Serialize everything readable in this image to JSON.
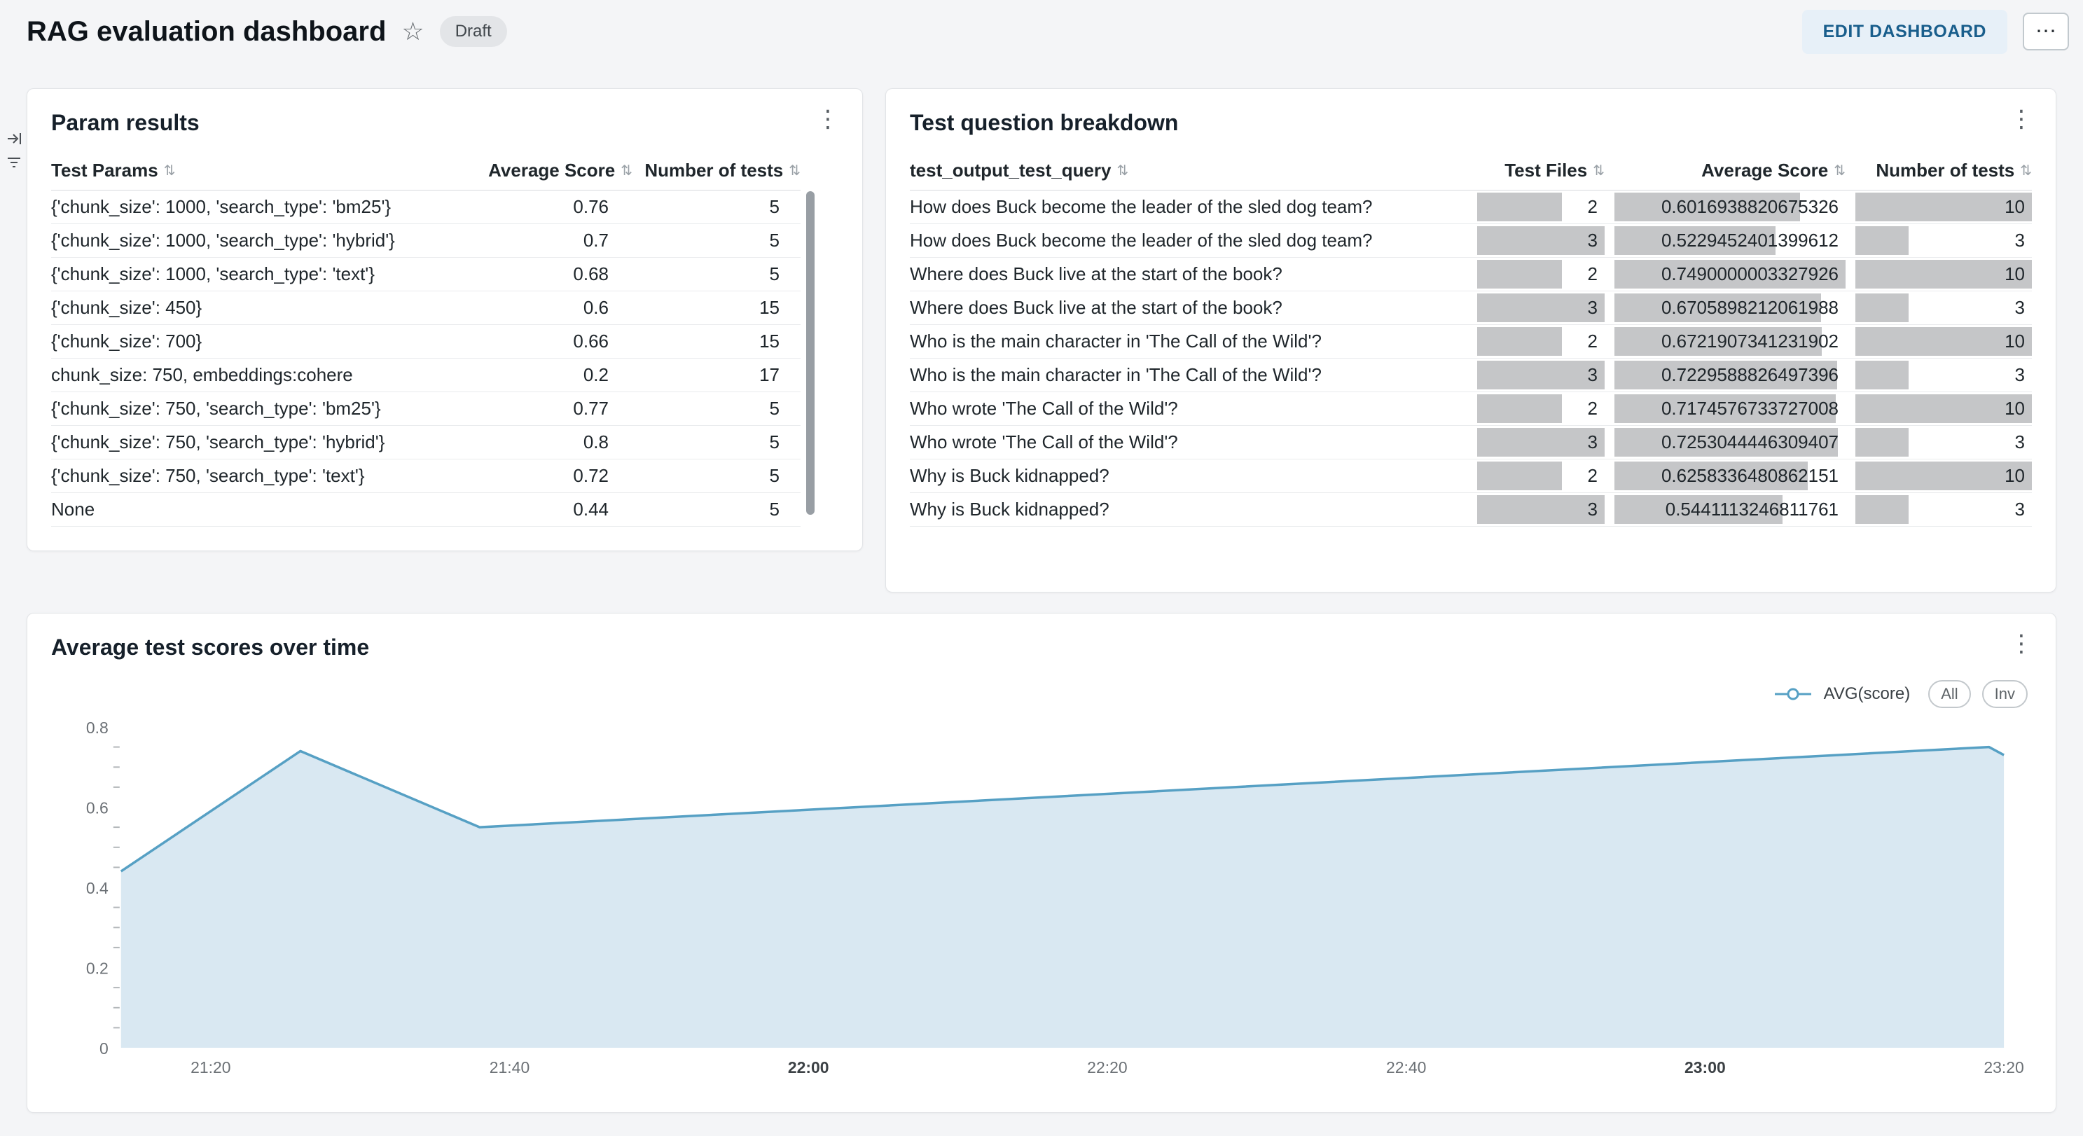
{
  "header": {
    "title": "RAG evaluation dashboard",
    "status_badge": "Draft",
    "edit_button": "EDIT DASHBOARD"
  },
  "icons": {
    "star": "☆",
    "kebab": "⋮",
    "ellipsis": "⋯",
    "sort": "⇅",
    "left_rail": [
      "collapse-panel-icon",
      "filter-icon"
    ]
  },
  "colors": {
    "edit_button_bg": "#e7f0f8",
    "edit_button_text": "#195e8c",
    "cell_bar_fill": "#c5c6c8",
    "chart_line": "#56a0c4",
    "chart_fill": "#d9e8f2",
    "scrollbar": "#989ea4"
  },
  "panels": {
    "param_results": {
      "title": "Param results",
      "columns": [
        "Test Params",
        "Average Score",
        "Number of tests"
      ],
      "rows": [
        {
          "params": "{'chunk_size': 1000, 'search_type': 'bm25'}",
          "avg_score": "0.76",
          "num_tests": "5"
        },
        {
          "params": "{'chunk_size': 1000, 'search_type': 'hybrid'}",
          "avg_score": "0.7",
          "num_tests": "5"
        },
        {
          "params": "{'chunk_size': 1000, 'search_type': 'text'}",
          "avg_score": "0.68",
          "num_tests": "5"
        },
        {
          "params": "{'chunk_size': 450}",
          "avg_score": "0.6",
          "num_tests": "15"
        },
        {
          "params": "{'chunk_size': 700}",
          "avg_score": "0.66",
          "num_tests": "15"
        },
        {
          "params": "chunk_size: 750, embeddings:cohere",
          "avg_score": "0.2",
          "num_tests": "17"
        },
        {
          "params": "{'chunk_size': 750, 'search_type': 'bm25'}",
          "avg_score": "0.77",
          "num_tests": "5"
        },
        {
          "params": "{'chunk_size': 750, 'search_type': 'hybrid'}",
          "avg_score": "0.8",
          "num_tests": "5"
        },
        {
          "params": "{'chunk_size': 750, 'search_type': 'text'}",
          "avg_score": "0.72",
          "num_tests": "5"
        },
        {
          "params": "None",
          "avg_score": "0.44",
          "num_tests": "5"
        }
      ]
    },
    "test_question_breakdown": {
      "title": "Test question breakdown",
      "columns": [
        "test_output_test_query",
        "Test Files",
        "Average Score",
        "Number of tests"
      ],
      "bar_max": {
        "test_files": 3,
        "avg_score": 0.7490000003327926,
        "num_tests": 10
      },
      "rows": [
        {
          "query": "How does Buck become the leader of the sled dog team?",
          "test_files": 2,
          "avg_score": "0.6016938820675326",
          "num_tests": 10
        },
        {
          "query": "How does Buck become the leader of the sled dog team?",
          "test_files": 3,
          "avg_score": "0.5229452401399612",
          "num_tests": 3
        },
        {
          "query": "Where does Buck live at the start of the book?",
          "test_files": 2,
          "avg_score": "0.7490000003327926",
          "num_tests": 10
        },
        {
          "query": "Where does Buck live at the start of the book?",
          "test_files": 3,
          "avg_score": "0.6705898212061988",
          "num_tests": 3
        },
        {
          "query": "Who is the main character in 'The Call of the Wild'?",
          "test_files": 2,
          "avg_score": "0.6721907341231902",
          "num_tests": 10
        },
        {
          "query": "Who is the main character in 'The Call of the Wild'?",
          "test_files": 3,
          "avg_score": "0.7229588826497396",
          "num_tests": 3
        },
        {
          "query": "Who wrote 'The Call of the Wild'?",
          "test_files": 2,
          "avg_score": "0.7174576733727008",
          "num_tests": 10
        },
        {
          "query": "Who wrote 'The Call of the Wild'?",
          "test_files": 3,
          "avg_score": "0.7253044446309407",
          "num_tests": 3
        },
        {
          "query": "Why is Buck kidnapped?",
          "test_files": 2,
          "avg_score": "0.6258336480862151",
          "num_tests": 10
        },
        {
          "query": "Why is Buck kidnapped?",
          "test_files": 3,
          "avg_score": "0.5441113246811761",
          "num_tests": 3
        }
      ]
    },
    "avg_scores_chart": {
      "title": "Average test scores over time",
      "legend": {
        "series_label": "AVG(score)",
        "buttons": [
          "All",
          "Inv"
        ]
      }
    }
  },
  "chart_data": {
    "type": "area",
    "title": "Average test scores over time",
    "series": [
      {
        "name": "AVG(score)",
        "points": [
          {
            "x": "21:14",
            "y": 0.44
          },
          {
            "x": "21:26",
            "y": 0.74
          },
          {
            "x": "21:38",
            "y": 0.55
          },
          {
            "x": "23:19",
            "y": 0.75
          },
          {
            "x": "23:20",
            "y": 0.73
          }
        ]
      }
    ],
    "x_ticks": [
      "21:20",
      "21:40",
      "22:00",
      "22:20",
      "22:40",
      "23:00",
      "23:20"
    ],
    "x_ticks_bold": [
      "22:00",
      "23:00"
    ],
    "y_ticks": [
      0,
      0.2,
      0.4,
      0.6,
      0.8
    ],
    "y_minor_step": 0.05,
    "ylim": [
      0,
      0.8
    ],
    "grid": false,
    "legend_position": "top-right",
    "line_color": "#56a0c4",
    "fill_color": "#d9e8f2"
  }
}
